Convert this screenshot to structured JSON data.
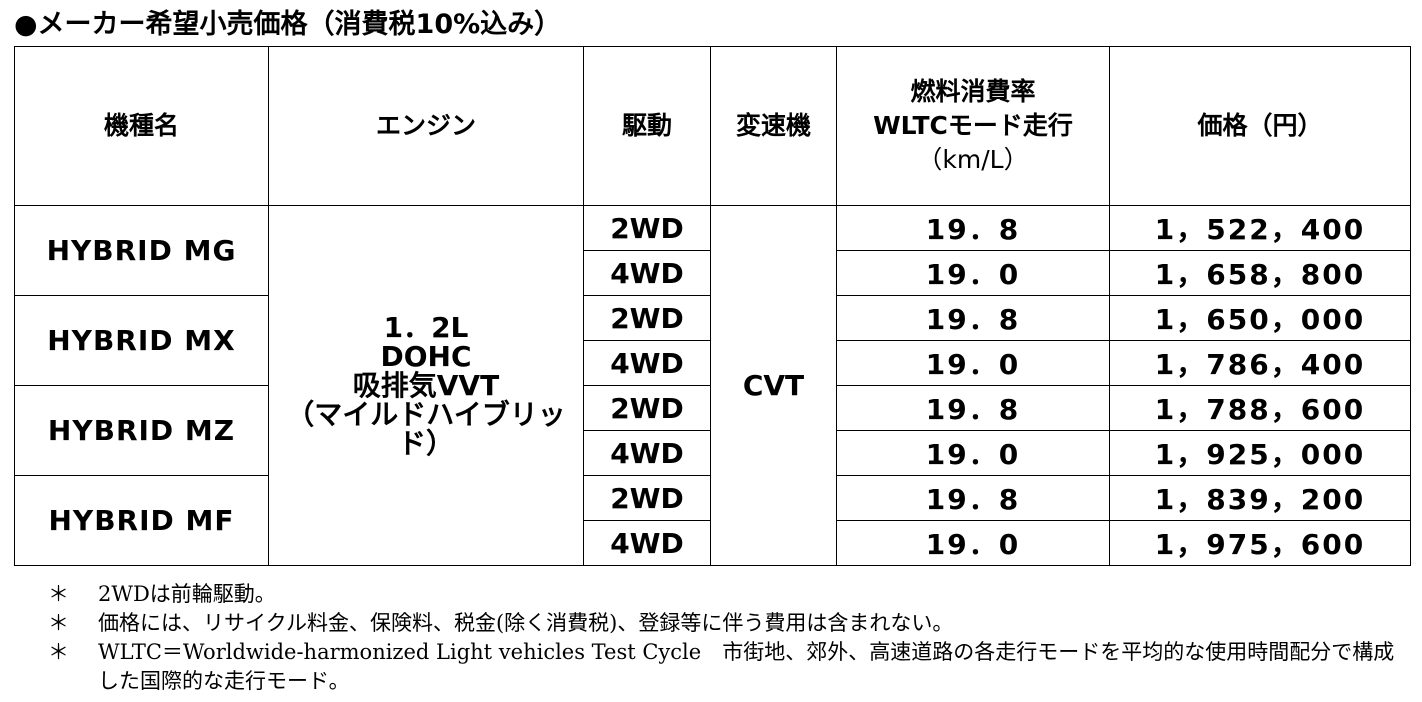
{
  "title": "●メーカー希望小売価格（消費税10%込み）",
  "headers": {
    "model": "機種名",
    "engine": "エンジン",
    "drive": "駆動",
    "transmission": "変速機",
    "fuel_line1": "燃料消費率",
    "fuel_line2": "WLTCモード走行",
    "fuel_line3": "（km/L）",
    "price": "価格（円）"
  },
  "engine": {
    "line1": "1．2L",
    "line2": "DOHC",
    "line3": "吸排気VVT",
    "line4": "（マイルドハイブリッド）"
  },
  "transmission": "CVT",
  "models": [
    "HYBRID MG",
    "HYBRID MX",
    "HYBRID MZ",
    "HYBRID MF"
  ],
  "rows": [
    {
      "drive": "2WD",
      "fuel": "19．8",
      "price": "1，522，400"
    },
    {
      "drive": "4WD",
      "fuel": "19．0",
      "price": "1，658，800"
    },
    {
      "drive": "2WD",
      "fuel": "19．8",
      "price": "1，650，000"
    },
    {
      "drive": "4WD",
      "fuel": "19．0",
      "price": "1，786，400"
    },
    {
      "drive": "2WD",
      "fuel": "19．8",
      "price": "1，788，600"
    },
    {
      "drive": "4WD",
      "fuel": "19．0",
      "price": "1，925，000"
    },
    {
      "drive": "2WD",
      "fuel": "19．8",
      "price": "1，839，200"
    },
    {
      "drive": "4WD",
      "fuel": "19．0",
      "price": "1，975，600"
    }
  ],
  "notes": [
    {
      "mark": "＊",
      "text": "2WDは前輪駆動。"
    },
    {
      "mark": "＊",
      "text": "価格には、リサイクル料金、保険料、税金(除く消費税)、登録等に伴う費用は含まれない。"
    },
    {
      "mark": "＊",
      "text": "WLTC＝Worldwide-harmonized Light vehicles Test Cycle　市街地、郊外、高速道路の各走行モードを平均的な使用時間配分で構成した国際的な走行モード。"
    }
  ]
}
